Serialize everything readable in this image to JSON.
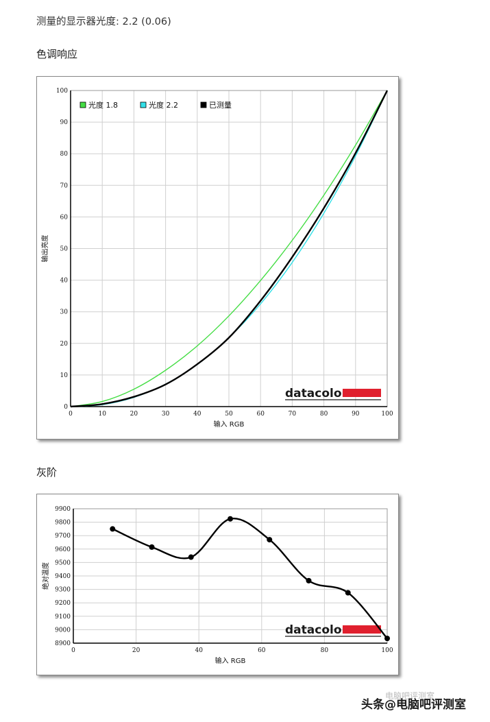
{
  "header": {
    "gamma_label": "测量的显示器光度: 2.2 (0.06)"
  },
  "sections": {
    "tone_response": "色调响应",
    "gray_scale": "灰阶"
  },
  "brand": {
    "name": "datacolor",
    "bar_color": "#e0202e"
  },
  "watermark": {
    "text": "头条@电脑吧评测室",
    "ghost_text": "电脑吧评测室"
  },
  "chart_data": [
    {
      "type": "line",
      "xlabel": "输入 RGB",
      "ylabel": "输出亮度",
      "xlim": [
        0,
        100
      ],
      "ylim": [
        0,
        100
      ],
      "x_ticks": [
        0,
        10,
        20,
        30,
        40,
        50,
        60,
        70,
        80,
        90,
        100
      ],
      "y_ticks": [
        0,
        10,
        20,
        30,
        40,
        50,
        60,
        70,
        80,
        90,
        100
      ],
      "grid": true,
      "legend_position": "top-left",
      "series": [
        {
          "name": "光度 1.8",
          "color": "#44dd44",
          "x": [
            0,
            10,
            20,
            30,
            40,
            50,
            60,
            70,
            80,
            90,
            100
          ],
          "values": [
            0,
            1.6,
            5.5,
            11.5,
            19.2,
            28.7,
            39.9,
            52.6,
            66.9,
            82.7,
            100
          ]
        },
        {
          "name": "光度 2.2",
          "color": "#33e0e8",
          "x": [
            0,
            10,
            20,
            30,
            40,
            50,
            60,
            70,
            80,
            90,
            100
          ],
          "values": [
            0,
            0.6,
            2.9,
            7.1,
            13.3,
            21.8,
            32.5,
            45.6,
            61.2,
            79.3,
            100
          ]
        },
        {
          "name": "已测量",
          "color": "#000000",
          "x": [
            0,
            10,
            20,
            30,
            40,
            50,
            60,
            70,
            80,
            90,
            100
          ],
          "values": [
            0,
            0.8,
            3.1,
            7.0,
            13.4,
            21.8,
            33.5,
            47.3,
            62.8,
            80.2,
            100
          ]
        }
      ]
    },
    {
      "type": "line",
      "xlabel": "输入 RGB",
      "ylabel": "绝对温度",
      "xlim": [
        0,
        100
      ],
      "ylim": [
        8900,
        9900
      ],
      "x_ticks": [
        0,
        20,
        40,
        60,
        80,
        100
      ],
      "y_ticks": [
        8900,
        9000,
        9100,
        9200,
        9300,
        9400,
        9500,
        9600,
        9700,
        9800,
        9900
      ],
      "grid": true,
      "series": [
        {
          "color": "#000000",
          "x": [
            12.5,
            25,
            37.5,
            50,
            62.5,
            75,
            87.5,
            100
          ],
          "values": [
            9750,
            9615,
            9540,
            9825,
            9670,
            9365,
            9275,
            8935
          ]
        }
      ]
    }
  ]
}
